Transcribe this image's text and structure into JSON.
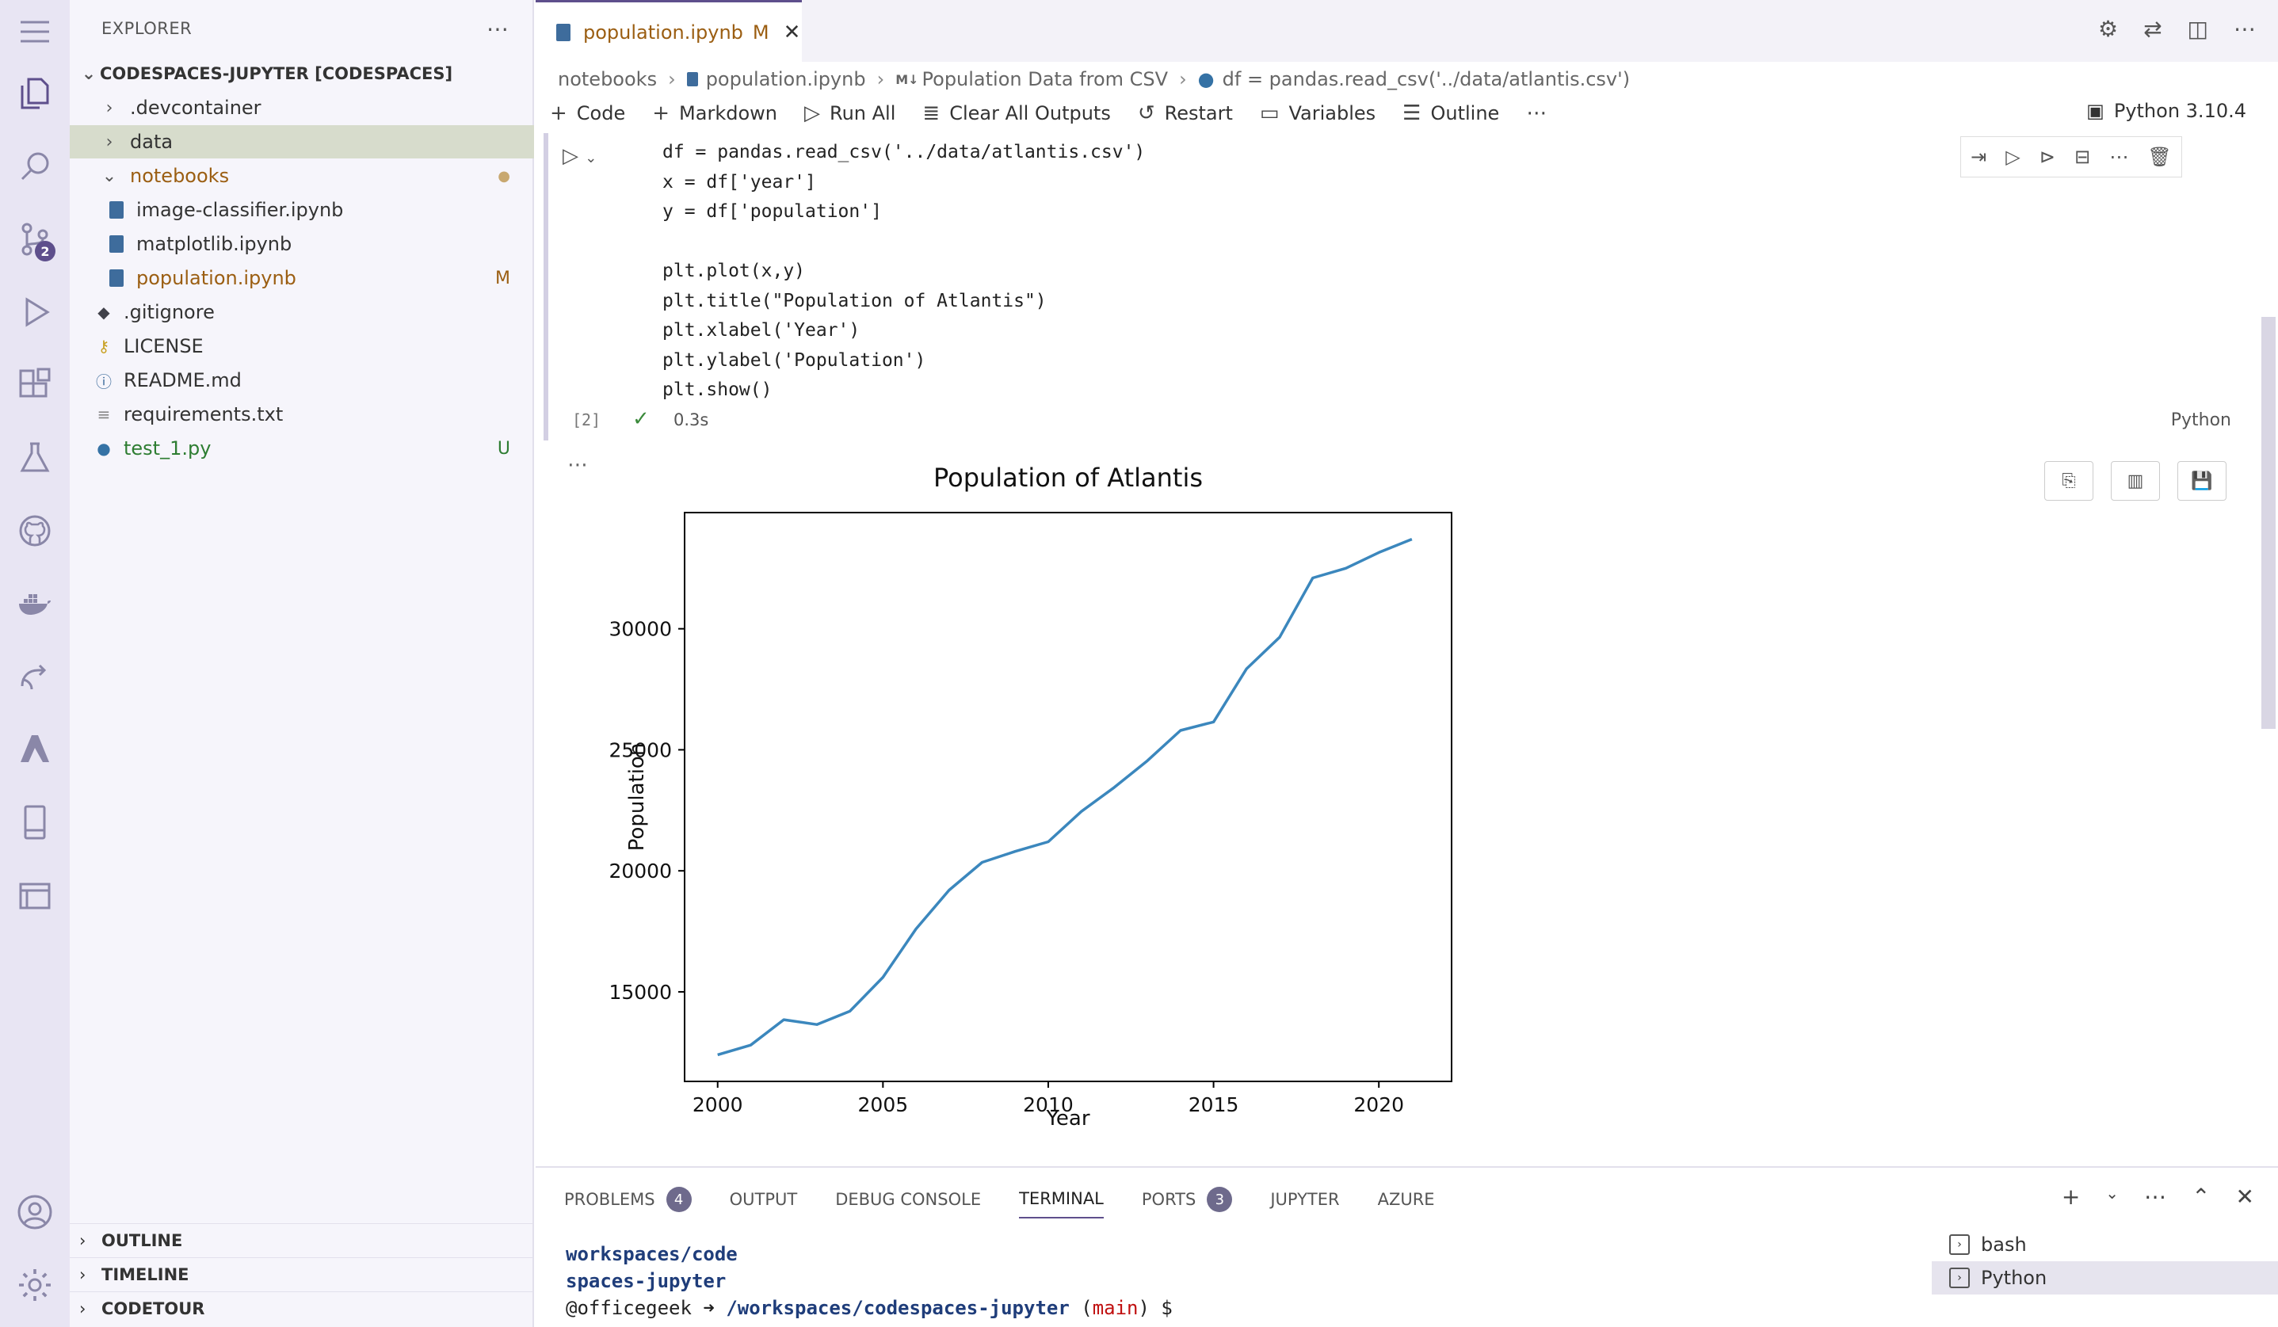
{
  "sidebar": {
    "title": "EXPLORER",
    "root": "CODESPACES-JUPYTER [CODESPACES]",
    "items": [
      {
        "label": ".devcontainer",
        "status": ""
      },
      {
        "label": "data",
        "status": ""
      },
      {
        "label": "notebooks",
        "status": "●"
      },
      {
        "label": "image-classifier.ipynb",
        "status": ""
      },
      {
        "label": "matplotlib.ipynb",
        "status": ""
      },
      {
        "label": "population.ipynb",
        "status": "M"
      },
      {
        "label": ".gitignore",
        "status": ""
      },
      {
        "label": "LICENSE",
        "status": ""
      },
      {
        "label": "README.md",
        "status": ""
      },
      {
        "label": "requirements.txt",
        "status": ""
      },
      {
        "label": "test_1.py",
        "status": "U"
      }
    ],
    "sections": [
      "OUTLINE",
      "TIMELINE",
      "CODETOUR"
    ]
  },
  "activity": {
    "source_control_badge": "2"
  },
  "editor": {
    "tab_label": "population.ipynb",
    "tab_status": "M",
    "breadcrumb": [
      "notebooks",
      "population.ipynb",
      "Population Data from CSV",
      "df = pandas.read_csv('../data/atlantis.csv')"
    ],
    "toolbar": {
      "code": "Code",
      "markdown": "Markdown",
      "run_all": "Run All",
      "clear_outputs": "Clear All Outputs",
      "restart": "Restart",
      "variables": "Variables",
      "outline": "Outline"
    },
    "kernel": "Python 3.10.4",
    "cell": {
      "lines": [
        "df = pandas.read_csv('../data/atlantis.csv')",
        "x = df['year']",
        "y = df['population']",
        "",
        "plt.plot(x,y)",
        "plt.title(\"Population of Atlantis\")",
        "plt.xlabel('Year')",
        "plt.ylabel('Population')",
        "plt.show()"
      ],
      "exec_count": "[2]",
      "exec_time": "0.3s",
      "language": "Python"
    }
  },
  "panel": {
    "tabs": [
      {
        "label": "PROBLEMS",
        "badge": "4"
      },
      {
        "label": "OUTPUT",
        "badge": ""
      },
      {
        "label": "DEBUG CONSOLE",
        "badge": ""
      },
      {
        "label": "TERMINAL",
        "badge": ""
      },
      {
        "label": "PORTS",
        "badge": "3"
      },
      {
        "label": "JUPYTER",
        "badge": ""
      },
      {
        "label": "AZURE",
        "badge": ""
      }
    ],
    "terminal_lines": [
      "workspaces/code",
      "spaces-jupyter"
    ],
    "prompt_user": "@officegeek",
    "prompt_path": "/workspaces/codespaces-jupyter",
    "prompt_branch": "main",
    "prompt_symbol": "$",
    "terminals": [
      "bash",
      "Python"
    ]
  },
  "chart_data": {
    "type": "line",
    "title": "Population of Atlantis",
    "xlabel": "Year",
    "ylabel": "Population",
    "x": [
      2000,
      2001,
      2002,
      2003,
      2004,
      2005,
      2006,
      2007,
      2008,
      2009,
      2010,
      2011,
      2012,
      2013,
      2014,
      2015,
      2016,
      2017,
      2018,
      2019,
      2020,
      2021
    ],
    "values": [
      12400,
      12800,
      13850,
      13650,
      14200,
      15600,
      17600,
      19200,
      20350,
      20800,
      21200,
      22450,
      23450,
      24550,
      25800,
      26150,
      28350,
      29650,
      32100,
      32500,
      33150,
      33700
    ],
    "xticks": [
      "2000",
      "2005",
      "2010",
      "2015",
      "2020"
    ],
    "yticks": [
      "15000",
      "20000",
      "25000",
      "30000"
    ],
    "xlim": [
      1999,
      2022.2
    ],
    "ylim": [
      11300,
      34800
    ],
    "color": "#3b87bd",
    "grid": false
  }
}
